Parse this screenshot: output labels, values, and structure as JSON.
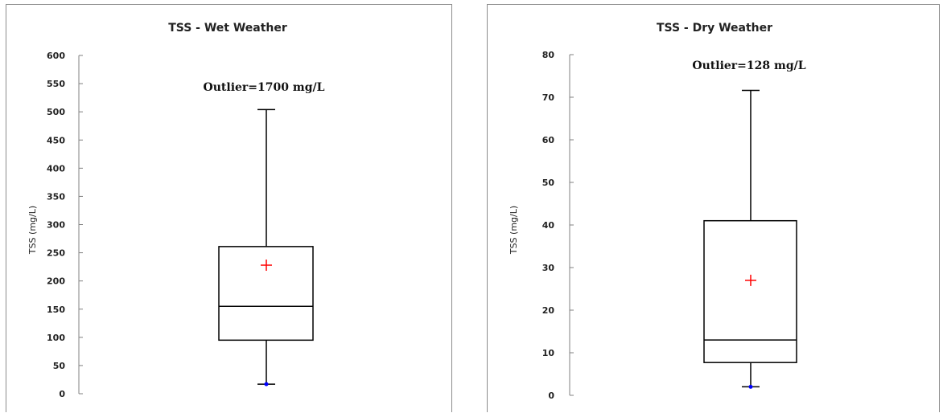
{
  "chart_data": [
    {
      "type": "box",
      "title": "TSS - Wet Weather",
      "xlabel": "",
      "ylabel": "TSS (mg/L)",
      "ylim": [
        0,
        600
      ],
      "yticks": [
        0,
        50,
        100,
        150,
        200,
        250,
        300,
        350,
        400,
        450,
        500,
        550,
        600
      ],
      "grid": false,
      "annotation": "Outlier=1700 mg/L",
      "box": {
        "min": 17,
        "q1": 95,
        "median": 155,
        "q3": 261,
        "max": 504,
        "mean": 228
      },
      "colors": {
        "mean": "#ff0000",
        "min_point": "#0000ff"
      }
    },
    {
      "type": "box",
      "title": "TSS - Dry Weather",
      "xlabel": "",
      "ylabel": "TSS (mg/L)",
      "ylim": [
        0,
        80
      ],
      "yticks": [
        0,
        10,
        20,
        30,
        40,
        50,
        60,
        70,
        80
      ],
      "grid": false,
      "annotation": "Outlier=128 mg/L",
      "box": {
        "min": 2,
        "q1": 7.7,
        "median": 13,
        "q3": 41,
        "max": 71.6,
        "mean": 27
      },
      "colors": {
        "mean": "#ff0000",
        "min_point": "#0000ff"
      }
    }
  ]
}
